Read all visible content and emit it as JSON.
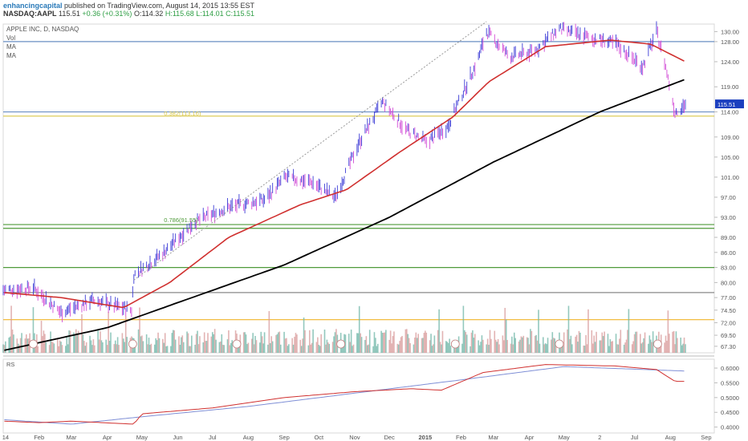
{
  "header": {
    "author": "enhancingcapital",
    "published": "published on TradingView.com, August 14, 2015 13:55 EST",
    "symbol": "NASDAQ:AAPL",
    "last": "115.51",
    "change": "+0.36 (+0.31%)",
    "open": "O:114.32",
    "high": "H:115.68",
    "low": "L:114.01",
    "close": "C:115.51"
  },
  "legend": {
    "title": "APPLE INC, D, NASDAQ",
    "vol": "Vol",
    "ma1": "MA",
    "ma2": "MA"
  },
  "colors": {
    "price_bar": "#3b3bd6",
    "price_bar_down": "#d24bd6",
    "ma_fast": "#d0302f",
    "ma_slow": "#000000",
    "hline_blue": "#6a8fc4",
    "hline_yellow": "#d9c74a",
    "hline_green": "#4f9a3a",
    "hline_orange": "#f0b429",
    "hline_gray": "#888888",
    "volume_up": "#6fb6a8",
    "volume_down": "#d99a9a",
    "volume_ma": "#b9d9ef",
    "rs_line": "#d0302f",
    "rs_ma": "#7f8fd6",
    "current_price_tag": "#1b3fbf"
  },
  "chart_data": {
    "type": "line",
    "title": "APPLE INC, D, NASDAQ",
    "y_axis_ticks": [
      "130.00",
      "128.00",
      "124.00",
      "119.00",
      "114.00",
      "109.00",
      "105.00",
      "101.00",
      "97.00",
      "93.00",
      "89.00",
      "86.00",
      "83.00",
      "80.00",
      "77.00",
      "74.50",
      "72.00",
      "69.50",
      "67.30"
    ],
    "current_price": "115.51",
    "x_axis_labels": [
      "14",
      "Feb",
      "Mar",
      "Apr",
      "May",
      "Jun",
      "Jul",
      "Aug",
      "Sep",
      "Oct",
      "Nov",
      "Dec",
      "2015",
      "Feb",
      "Mar",
      "Apr",
      "May",
      "2",
      "Jul",
      "Aug",
      "Sep"
    ],
    "fib_labels": [
      "0.786(91.55)",
      "0.382(113.16)"
    ],
    "horizontal_levels": [
      {
        "price": 128.0,
        "color": "#6a8fc4"
      },
      {
        "price": 113.16,
        "color": "#d9c74a"
      },
      {
        "price": 114.0,
        "color": "#6a8fc4"
      },
      {
        "price": 91.55,
        "color": "#4f9a3a"
      },
      {
        "price": 90.8,
        "color": "#4f9a3a"
      },
      {
        "price": 83.0,
        "color": "#4f9a3a"
      },
      {
        "price": 78.0,
        "color": "#888888"
      },
      {
        "price": 72.6,
        "color": "#f0b429"
      }
    ],
    "price_series": {
      "name": "AAPL",
      "x": [
        "2014-01-02",
        "2014-01-27",
        "2014-02-20",
        "2014-03-20",
        "2014-04-22",
        "2014-04-24",
        "2014-05-20",
        "2014-06-15",
        "2014-07-15",
        "2014-08-15",
        "2014-09-02",
        "2014-09-25",
        "2014-10-15",
        "2014-11-05",
        "2014-11-25",
        "2014-12-15",
        "2015-01-02",
        "2015-01-20",
        "2015-02-15",
        "2015-02-23",
        "2015-03-15",
        "2015-04-05",
        "2015-04-27",
        "2015-05-20",
        "2015-06-15",
        "2015-07-08",
        "2015-07-20",
        "2015-07-27",
        "2015-08-05",
        "2015-08-14"
      ],
      "values": [
        78.5,
        79.0,
        74.0,
        76.5,
        74.5,
        81.5,
        86.0,
        92.0,
        95.0,
        96.5,
        101.0,
        100.0,
        97.0,
        108.0,
        116.0,
        110.5,
        108.0,
        111.0,
        124.0,
        130.0,
        125.0,
        126.0,
        130.5,
        129.0,
        127.5,
        123.0,
        130.0,
        124.0,
        114.0,
        115.5
      ]
    },
    "ma_fast": {
      "x": [
        "2014-01-02",
        "2014-02-20",
        "2014-04-15",
        "2014-05-25",
        "2014-07-15",
        "2014-09-15",
        "2014-10-25",
        "2014-12-10",
        "2015-01-25",
        "2015-02-25",
        "2015-04-15",
        "2015-06-10",
        "2015-07-15",
        "2015-08-14"
      ],
      "values": [
        78.0,
        77.0,
        75.0,
        80.0,
        89.0,
        95.5,
        98.5,
        106.0,
        113.0,
        120.0,
        127.0,
        128.3,
        127.5,
        124.0
      ]
    },
    "ma_slow": {
      "x": [
        "2014-01-02",
        "2014-04-01",
        "2014-06-01",
        "2014-09-01",
        "2014-12-01",
        "2015-03-01",
        "2015-06-01",
        "2015-08-14"
      ],
      "values": [
        66.5,
        71.0,
        76.0,
        83.5,
        93.0,
        104.0,
        114.0,
        120.5
      ]
    },
    "rs_axis_ticks": [
      "0.6000",
      "0.5500",
      "0.5000",
      "0.4500",
      "0.4000"
    ],
    "rs_series": {
      "name": "RS",
      "x": [
        "2014-01-02",
        "2014-02-01",
        "2014-03-01",
        "2014-04-24",
        "2014-05-01",
        "2014-07-01",
        "2014-09-01",
        "2014-11-01",
        "2014-12-20",
        "2015-01-15",
        "2015-02-20",
        "2015-04-15",
        "2015-06-15",
        "2015-07-20",
        "2015-08-05",
        "2015-08-14"
      ],
      "values": [
        0.42,
        0.415,
        0.42,
        0.41,
        0.445,
        0.465,
        0.5,
        0.52,
        0.53,
        0.525,
        0.585,
        0.612,
        0.607,
        0.595,
        0.555,
        0.555
      ]
    },
    "rs_ma": {
      "x": [
        "2014-01-02",
        "2014-03-01",
        "2014-05-01",
        "2014-08-01",
        "2014-11-01",
        "2015-02-01",
        "2015-05-01",
        "2015-08-14"
      ],
      "values": [
        0.425,
        0.41,
        0.435,
        0.47,
        0.515,
        0.56,
        0.605,
        0.59
      ]
    }
  }
}
